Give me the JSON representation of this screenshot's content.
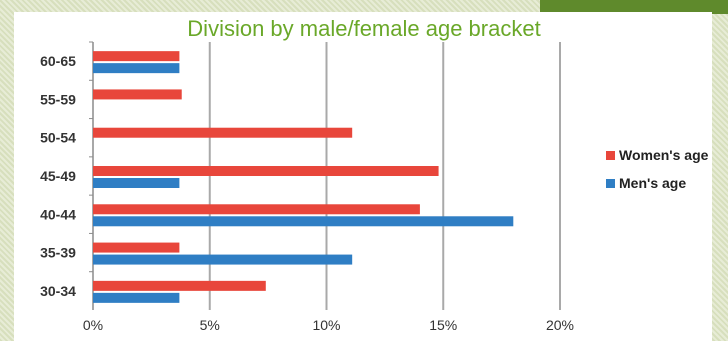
{
  "chart_data": {
    "type": "bar",
    "orientation": "horizontal",
    "title": "Division by male/female age bracket",
    "categories": [
      "60-65",
      "55-59",
      "50-54",
      "45-49",
      "40-44",
      "35-39",
      "30-34"
    ],
    "series": [
      {
        "name": "Women's age",
        "color": "#e8463b",
        "values": [
          3.7,
          3.8,
          11.1,
          14.8,
          14.0,
          3.7,
          7.4
        ]
      },
      {
        "name": "Men's age",
        "color": "#2f7ec4",
        "values": [
          3.7,
          0,
          0,
          3.7,
          18.0,
          11.1,
          3.7
        ]
      }
    ],
    "xticks": [
      "0%",
      "5%",
      "10%",
      "15%",
      "20%"
    ],
    "xlim": [
      0,
      20
    ],
    "grid": true,
    "legend_position": "right"
  }
}
